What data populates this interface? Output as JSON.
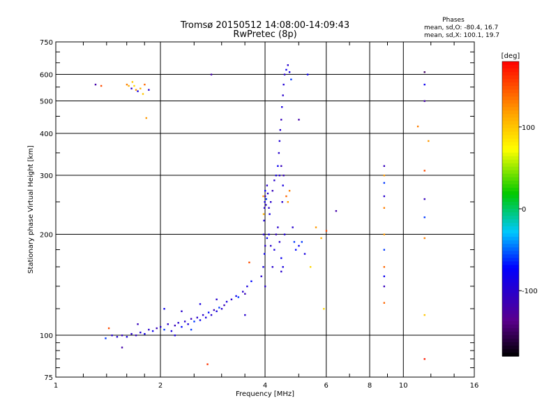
{
  "chart_data": {
    "type": "scatter",
    "title": "Tromsø 20150512 14:08:00-14:09:43",
    "subtitle": "RwPretec (8p)",
    "stats": {
      "heading": "Phases",
      "line1": "mean, sd,O: -80.4, 16.7",
      "line2": "mean, sd,X: 100.1, 19.7"
    },
    "xlabel": "Frequency [MHz]",
    "ylabel": "Stationary phase Virtual Height [km]",
    "x_scale": "log",
    "y_scale": "log",
    "xlim": [
      1,
      16
    ],
    "ylim": [
      75,
      750
    ],
    "x_ticks": [
      1,
      2,
      4,
      6,
      8,
      10,
      16
    ],
    "x_tick_labels": [
      "1",
      "2",
      "4",
      "6",
      "8",
      "10",
      "16"
    ],
    "y_ticks": [
      75,
      100,
      200,
      300,
      400,
      500,
      600,
      750
    ],
    "y_tick_labels": [
      "75",
      "100",
      "200",
      "300",
      "400",
      "500",
      "600",
      "750"
    ],
    "grid": true,
    "colorbar": {
      "label": "[deg]",
      "range": [
        -180,
        180
      ],
      "ticks": [
        100,
        0,
        -100
      ],
      "tick_labels": [
        "100",
        "0",
        "-100"
      ]
    },
    "points": [
      [
        1.45,
        100,
        -100
      ],
      [
        1.5,
        99,
        -95
      ],
      [
        1.55,
        100,
        -110
      ],
      [
        1.6,
        99,
        -90
      ],
      [
        1.65,
        101,
        -100
      ],
      [
        1.7,
        100,
        -105
      ],
      [
        1.75,
        102,
        -95
      ],
      [
        1.8,
        101,
        -85
      ],
      [
        1.39,
        98,
        -60
      ],
      [
        1.42,
        105,
        150
      ],
      [
        1.55,
        92,
        -120
      ],
      [
        1.72,
        108,
        -110
      ],
      [
        1.85,
        104,
        -100
      ],
      [
        1.9,
        103,
        -80
      ],
      [
        1.95,
        105,
        -110
      ],
      [
        2.0,
        106,
        -100
      ],
      [
        2.05,
        104,
        -60
      ],
      [
        2.1,
        108,
        -100
      ],
      [
        2.15,
        103,
        -90
      ],
      [
        2.2,
        107,
        -110
      ],
      [
        2.25,
        109,
        -100
      ],
      [
        2.3,
        106,
        -70
      ],
      [
        2.35,
        110,
        -100
      ],
      [
        2.4,
        108,
        -90
      ],
      [
        2.45,
        112,
        -110
      ],
      [
        2.5,
        110,
        -60
      ],
      [
        2.55,
        113,
        -100
      ],
      [
        2.6,
        111,
        -80
      ],
      [
        2.65,
        115,
        -100
      ],
      [
        2.7,
        113,
        -90
      ],
      [
        2.75,
        117,
        -70
      ],
      [
        2.8,
        115,
        -100
      ],
      [
        2.85,
        119,
        -110
      ],
      [
        2.9,
        118,
        -90
      ],
      [
        2.95,
        121,
        -60
      ],
      [
        3.0,
        120,
        -100
      ],
      [
        2.05,
        120,
        -80
      ],
      [
        2.3,
        118,
        -100
      ],
      [
        2.6,
        124,
        -90
      ],
      [
        2.9,
        128,
        -100
      ],
      [
        3.05,
        123,
        -110
      ],
      [
        3.1,
        126,
        -90
      ],
      [
        3.2,
        128,
        -100
      ],
      [
        3.3,
        131,
        -80
      ],
      [
        3.35,
        130,
        -60
      ],
      [
        3.45,
        135,
        -100
      ],
      [
        3.5,
        133,
        -110
      ],
      [
        3.55,
        140,
        -90
      ],
      [
        3.65,
        145,
        -70
      ],
      [
        3.5,
        115,
        -100
      ],
      [
        2.45,
        104,
        -60
      ],
      [
        2.2,
        100,
        -90
      ],
      [
        3.6,
        165,
        150
      ],
      [
        2.73,
        82,
        160
      ],
      [
        3.9,
        150,
        -100
      ],
      [
        3.95,
        160,
        -90
      ],
      [
        3.98,
        175,
        -80
      ],
      [
        3.96,
        200,
        -100
      ],
      [
        3.97,
        220,
        -95
      ],
      [
        3.98,
        240,
        -100
      ],
      [
        3.99,
        250,
        -90
      ],
      [
        4.0,
        260,
        -110
      ],
      [
        4.02,
        245,
        -100
      ],
      [
        4.0,
        270,
        -80
      ],
      [
        4.03,
        255,
        -60
      ],
      [
        4.05,
        280,
        -100
      ],
      [
        4.07,
        265,
        -95
      ],
      [
        4.1,
        240,
        -100
      ],
      [
        4.12,
        230,
        -90
      ],
      [
        4.15,
        250,
        -100
      ],
      [
        4.2,
        270,
        -110
      ],
      [
        4.25,
        290,
        -100
      ],
      [
        4.3,
        300,
        -90
      ],
      [
        4.35,
        320,
        -80
      ],
      [
        4.38,
        350,
        -100
      ],
      [
        4.4,
        380,
        -95
      ],
      [
        4.42,
        410,
        -100
      ],
      [
        4.45,
        440,
        -110
      ],
      [
        4.47,
        480,
        -90
      ],
      [
        4.5,
        520,
        -100
      ],
      [
        4.52,
        560,
        -95
      ],
      [
        4.55,
        600,
        -100
      ],
      [
        4.6,
        620,
        -80
      ],
      [
        4.65,
        640,
        -100
      ],
      [
        4.7,
        610,
        -90
      ],
      [
        4.75,
        580,
        -60
      ],
      [
        4.4,
        300,
        -100
      ],
      [
        4.45,
        320,
        -110
      ],
      [
        4.5,
        280,
        -90
      ],
      [
        4.35,
        210,
        -100
      ],
      [
        4.4,
        190,
        -100
      ],
      [
        4.45,
        170,
        -80
      ],
      [
        4.3,
        200,
        -110
      ],
      [
        4.25,
        180,
        -90
      ],
      [
        4.2,
        160,
        -100
      ],
      [
        4.45,
        155,
        -100
      ],
      [
        4.5,
        160,
        -90
      ],
      [
        4.55,
        200,
        -95
      ],
      [
        4.48,
        250,
        -100
      ],
      [
        4.52,
        300,
        -110
      ],
      [
        4.1,
        200,
        -90
      ],
      [
        4.15,
        185,
        -100
      ],
      [
        4.05,
        195,
        -80
      ],
      [
        4.0,
        185,
        -100
      ],
      [
        4.6,
        260,
        140
      ],
      [
        4.7,
        270,
        130
      ],
      [
        4.65,
        250,
        120
      ],
      [
        4.8,
        210,
        -100
      ],
      [
        4.85,
        190,
        -60
      ],
      [
        4.9,
        180,
        -70
      ],
      [
        5.0,
        185,
        -80
      ],
      [
        5.1,
        190,
        -60
      ],
      [
        5.2,
        175,
        -90
      ],
      [
        5.0,
        440,
        -120
      ],
      [
        5.3,
        600,
        -80
      ],
      [
        5.4,
        160,
        90
      ],
      [
        5.6,
        210,
        120
      ],
      [
        5.8,
        195,
        110
      ],
      [
        5.9,
        120,
        90
      ],
      [
        6.4,
        235,
        -120
      ],
      [
        6.0,
        205,
        150
      ],
      [
        4.0,
        140,
        -100
      ],
      [
        3.95,
        260,
        120
      ],
      [
        3.96,
        230,
        110
      ],
      [
        8.8,
        320,
        -110
      ],
      [
        8.8,
        285,
        -60
      ],
      [
        8.8,
        260,
        -100
      ],
      [
        8.8,
        240,
        130
      ],
      [
        8.8,
        200,
        120
      ],
      [
        8.8,
        180,
        -60
      ],
      [
        8.8,
        160,
        140
      ],
      [
        8.8,
        150,
        -80
      ],
      [
        8.8,
        140,
        -110
      ],
      [
        8.8,
        125,
        140
      ],
      [
        8.8,
        300,
        120
      ],
      [
        11.5,
        610,
        -150
      ],
      [
        11.5,
        560,
        -80
      ],
      [
        11.5,
        500,
        -120
      ],
      [
        11.5,
        310,
        150
      ],
      [
        11.5,
        255,
        -110
      ],
      [
        11.5,
        225,
        -60
      ],
      [
        11.5,
        195,
        130
      ],
      [
        11.5,
        115,
        100
      ],
      [
        11.5,
        85,
        170
      ],
      [
        11.8,
        380,
        120
      ],
      [
        11.0,
        420,
        130
      ],
      [
        1.3,
        560,
        -120
      ],
      [
        1.35,
        555,
        150
      ],
      [
        1.6,
        560,
        130
      ],
      [
        1.62,
        555,
        110
      ],
      [
        1.65,
        545,
        -100
      ],
      [
        1.7,
        540,
        120
      ],
      [
        1.72,
        535,
        -90
      ],
      [
        1.75,
        545,
        110
      ],
      [
        1.68,
        555,
        90
      ],
      [
        1.8,
        560,
        140
      ],
      [
        1.85,
        540,
        -100
      ],
      [
        1.78,
        525,
        100
      ],
      [
        1.82,
        445,
        120
      ],
      [
        1.66,
        570,
        100
      ],
      [
        2.8,
        600,
        -120
      ]
    ]
  }
}
